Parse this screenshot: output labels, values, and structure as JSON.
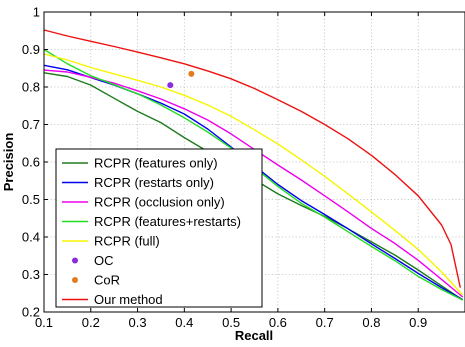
{
  "chart_data": {
    "type": "line",
    "title": "",
    "xlabel": "Recall",
    "ylabel": "Precision",
    "xlim": [
      0.1,
      1.0
    ],
    "ylim": [
      0.2,
      1.0
    ],
    "grid": true,
    "x_ticks": [
      "0.1",
      "0.2",
      "0.3",
      "0.4",
      "0.5",
      "0.6",
      "0.7",
      "0.8",
      "0.9"
    ],
    "y_ticks": [
      "0.2",
      "0.3",
      "0.4",
      "0.5",
      "0.6",
      "0.7",
      "0.8",
      "0.9",
      "1"
    ],
    "legend_position": "lower-left",
    "series": [
      {
        "name": "RCPR (features only)",
        "kind": "line",
        "color": "#1e7a1e",
        "points": [
          [
            0.1,
            0.838
          ],
          [
            0.15,
            0.828
          ],
          [
            0.2,
            0.805
          ],
          [
            0.25,
            0.77
          ],
          [
            0.3,
            0.735
          ],
          [
            0.35,
            0.705
          ],
          [
            0.4,
            0.665
          ],
          [
            0.45,
            0.628
          ],
          [
            0.5,
            0.59
          ],
          [
            0.55,
            0.553
          ],
          [
            0.6,
            0.515
          ],
          [
            0.65,
            0.484
          ],
          [
            0.7,
            0.455
          ],
          [
            0.75,
            0.422
          ],
          [
            0.8,
            0.387
          ],
          [
            0.85,
            0.352
          ],
          [
            0.9,
            0.312
          ],
          [
            0.95,
            0.27
          ],
          [
            0.995,
            0.232
          ]
        ]
      },
      {
        "name": "RCPR (restarts only)",
        "kind": "line",
        "color": "#0000ee",
        "points": [
          [
            0.1,
            0.858
          ],
          [
            0.15,
            0.846
          ],
          [
            0.2,
            0.825
          ],
          [
            0.25,
            0.805
          ],
          [
            0.3,
            0.782
          ],
          [
            0.35,
            0.757
          ],
          [
            0.4,
            0.728
          ],
          [
            0.45,
            0.688
          ],
          [
            0.5,
            0.64
          ],
          [
            0.55,
            0.59
          ],
          [
            0.6,
            0.54
          ],
          [
            0.65,
            0.497
          ],
          [
            0.7,
            0.46
          ],
          [
            0.75,
            0.422
          ],
          [
            0.8,
            0.382
          ],
          [
            0.85,
            0.343
          ],
          [
            0.9,
            0.303
          ],
          [
            0.95,
            0.265
          ],
          [
            0.995,
            0.233
          ]
        ]
      },
      {
        "name": "RCPR (occlusion only)",
        "kind": "line",
        "color": "#ee00ee",
        "points": [
          [
            0.1,
            0.845
          ],
          [
            0.15,
            0.84
          ],
          [
            0.2,
            0.826
          ],
          [
            0.25,
            0.81
          ],
          [
            0.3,
            0.79
          ],
          [
            0.35,
            0.768
          ],
          [
            0.4,
            0.742
          ],
          [
            0.45,
            0.712
          ],
          [
            0.5,
            0.675
          ],
          [
            0.55,
            0.633
          ],
          [
            0.6,
            0.592
          ],
          [
            0.65,
            0.552
          ],
          [
            0.7,
            0.51
          ],
          [
            0.75,
            0.467
          ],
          [
            0.8,
            0.423
          ],
          [
            0.85,
            0.383
          ],
          [
            0.9,
            0.338
          ],
          [
            0.95,
            0.287
          ],
          [
            0.995,
            0.24
          ]
        ]
      },
      {
        "name": "RCPR (features+restarts)",
        "kind": "line",
        "color": "#22dd22",
        "points": [
          [
            0.1,
            0.9
          ],
          [
            0.15,
            0.862
          ],
          [
            0.2,
            0.83
          ],
          [
            0.25,
            0.806
          ],
          [
            0.3,
            0.782
          ],
          [
            0.35,
            0.752
          ],
          [
            0.4,
            0.718
          ],
          [
            0.45,
            0.68
          ],
          [
            0.5,
            0.637
          ],
          [
            0.55,
            0.585
          ],
          [
            0.6,
            0.535
          ],
          [
            0.65,
            0.49
          ],
          [
            0.7,
            0.453
          ],
          [
            0.75,
            0.414
          ],
          [
            0.8,
            0.375
          ],
          [
            0.85,
            0.337
          ],
          [
            0.9,
            0.295
          ],
          [
            0.95,
            0.26
          ],
          [
            0.995,
            0.232
          ]
        ]
      },
      {
        "name": "RCPR (full)",
        "kind": "line",
        "color": "#f5f500",
        "points": [
          [
            0.1,
            0.888
          ],
          [
            0.15,
            0.872
          ],
          [
            0.2,
            0.852
          ],
          [
            0.25,
            0.835
          ],
          [
            0.3,
            0.818
          ],
          [
            0.35,
            0.8
          ],
          [
            0.4,
            0.778
          ],
          [
            0.45,
            0.752
          ],
          [
            0.5,
            0.722
          ],
          [
            0.55,
            0.686
          ],
          [
            0.6,
            0.648
          ],
          [
            0.65,
            0.606
          ],
          [
            0.7,
            0.562
          ],
          [
            0.75,
            0.515
          ],
          [
            0.8,
            0.467
          ],
          [
            0.85,
            0.418
          ],
          [
            0.9,
            0.367
          ],
          [
            0.95,
            0.307
          ],
          [
            0.995,
            0.245
          ]
        ]
      },
      {
        "name": "OC",
        "kind": "point",
        "color": "#8a2be2",
        "points": [
          [
            0.37,
            0.805
          ]
        ]
      },
      {
        "name": "CoR",
        "kind": "point",
        "color": "#e07b20",
        "points": [
          [
            0.415,
            0.835
          ]
        ]
      },
      {
        "name": "Our method",
        "kind": "line",
        "color": "#ee1111",
        "points": [
          [
            0.1,
            0.952
          ],
          [
            0.15,
            0.936
          ],
          [
            0.2,
            0.922
          ],
          [
            0.25,
            0.908
          ],
          [
            0.3,
            0.893
          ],
          [
            0.35,
            0.878
          ],
          [
            0.4,
            0.862
          ],
          [
            0.45,
            0.843
          ],
          [
            0.5,
            0.822
          ],
          [
            0.55,
            0.796
          ],
          [
            0.6,
            0.766
          ],
          [
            0.65,
            0.735
          ],
          [
            0.7,
            0.7
          ],
          [
            0.75,
            0.662
          ],
          [
            0.8,
            0.618
          ],
          [
            0.85,
            0.567
          ],
          [
            0.9,
            0.51
          ],
          [
            0.95,
            0.432
          ],
          [
            0.97,
            0.38
          ],
          [
            0.99,
            0.265
          ]
        ]
      }
    ]
  }
}
